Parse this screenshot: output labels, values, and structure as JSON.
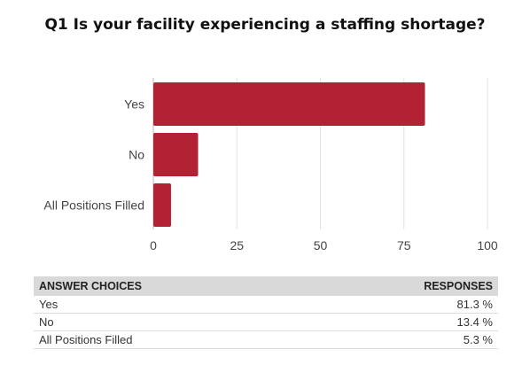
{
  "chart_data": {
    "type": "bar",
    "orientation": "horizontal",
    "title": "Q1 Is your facility experiencing a staffing shortage?",
    "categories": [
      "Yes",
      "No",
      "All Positions Filled"
    ],
    "values": [
      81.3,
      13.4,
      5.3
    ],
    "xlim": [
      0,
      100
    ],
    "xticks": [
      0,
      25,
      50,
      75,
      100
    ],
    "grid": "vertical",
    "bar_color": "#b22234"
  },
  "table": {
    "headers": [
      "ANSWER CHOICES",
      "RESPONSES"
    ],
    "rows": [
      [
        "Yes",
        "81.3 %"
      ],
      [
        "No",
        "13.4 %"
      ],
      [
        "All Positions Filled",
        "5.3 %"
      ]
    ]
  }
}
